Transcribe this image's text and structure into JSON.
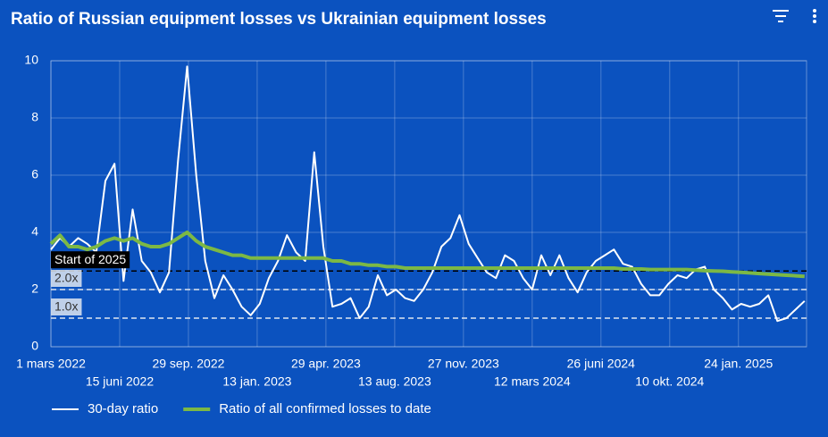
{
  "chart_data": {
    "type": "line",
    "title": "Ratio of Russian equipment losses vs Ukrainian equipment losses",
    "x": [
      "2022-03-01",
      "2022-03-15",
      "2022-03-29",
      "2022-04-12",
      "2022-04-26",
      "2022-05-10",
      "2022-05-24",
      "2022-06-07",
      "2022-06-21",
      "2022-07-05",
      "2022-07-19",
      "2022-08-02",
      "2022-08-16",
      "2022-08-30",
      "2022-09-13",
      "2022-09-27",
      "2022-10-11",
      "2022-10-25",
      "2022-11-08",
      "2022-11-22",
      "2022-12-06",
      "2022-12-20",
      "2023-01-03",
      "2023-01-17",
      "2023-01-31",
      "2023-02-14",
      "2023-02-28",
      "2023-03-14",
      "2023-03-28",
      "2023-04-11",
      "2023-04-25",
      "2023-05-09",
      "2023-05-23",
      "2023-06-06",
      "2023-06-20",
      "2023-07-04",
      "2023-07-18",
      "2023-08-01",
      "2023-08-15",
      "2023-08-29",
      "2023-09-12",
      "2023-09-26",
      "2023-10-10",
      "2023-10-24",
      "2023-11-07",
      "2023-11-21",
      "2023-12-05",
      "2023-12-19",
      "2024-01-02",
      "2024-01-16",
      "2024-01-30",
      "2024-02-13",
      "2024-02-27",
      "2024-03-12",
      "2024-03-26",
      "2024-04-09",
      "2024-04-23",
      "2024-05-07",
      "2024-05-21",
      "2024-06-04",
      "2024-06-18",
      "2024-07-02",
      "2024-07-16",
      "2024-07-30",
      "2024-08-13",
      "2024-08-27",
      "2024-09-10",
      "2024-09-24",
      "2024-10-08",
      "2024-10-22",
      "2024-11-05",
      "2024-11-19",
      "2024-12-03",
      "2024-12-17",
      "2024-12-31",
      "2025-01-14",
      "2025-01-28",
      "2025-02-11",
      "2025-02-25",
      "2025-03-11",
      "2025-03-25",
      "2025-04-08",
      "2025-04-22",
      "2025-05-06"
    ],
    "series": [
      {
        "name": "30-day ratio",
        "color": "#ffffff",
        "values": [
          3.4,
          3.8,
          3.5,
          3.8,
          3.6,
          3.3,
          5.8,
          6.4,
          2.3,
          4.8,
          3.0,
          2.6,
          1.9,
          2.6,
          6.5,
          9.8,
          6.0,
          3.0,
          1.7,
          2.5,
          2.0,
          1.4,
          1.1,
          1.5,
          2.4,
          3.0,
          3.9,
          3.3,
          3.0,
          6.8,
          3.5,
          1.4,
          1.5,
          1.7,
          1.0,
          1.4,
          2.5,
          1.8,
          2.0,
          1.7,
          1.6,
          2.0,
          2.6,
          3.5,
          3.8,
          4.6,
          3.6,
          3.1,
          2.6,
          2.4,
          3.2,
          3.0,
          2.4,
          2.0,
          3.2,
          2.5,
          3.2,
          2.4,
          1.9,
          2.6,
          3.0,
          3.2,
          3.4,
          2.9,
          2.8,
          2.2,
          1.8,
          1.8,
          2.2,
          2.5,
          2.4,
          2.7,
          2.8,
          2.0,
          1.7,
          1.3,
          1.5,
          1.4,
          1.5,
          1.8,
          0.9,
          1.0,
          1.3,
          1.6
        ]
      },
      {
        "name": "Ratio of all confirmed losses to date",
        "color": "#7cb845",
        "values": [
          3.6,
          3.9,
          3.5,
          3.5,
          3.4,
          3.5,
          3.7,
          3.8,
          3.7,
          3.8,
          3.6,
          3.5,
          3.5,
          3.6,
          3.8,
          4.0,
          3.7,
          3.5,
          3.4,
          3.3,
          3.2,
          3.2,
          3.1,
          3.1,
          3.1,
          3.1,
          3.1,
          3.1,
          3.1,
          3.1,
          3.1,
          3.0,
          3.0,
          2.9,
          2.9,
          2.85,
          2.85,
          2.8,
          2.8,
          2.75,
          2.75,
          2.75,
          2.75,
          2.75,
          2.75,
          2.75,
          2.75,
          2.75,
          2.75,
          2.75,
          2.75,
          2.75,
          2.75,
          2.75,
          2.75,
          2.75,
          2.75,
          2.75,
          2.75,
          2.75,
          2.75,
          2.75,
          2.75,
          2.72,
          2.72,
          2.72,
          2.7,
          2.7,
          2.7,
          2.7,
          2.7,
          2.68,
          2.66,
          2.65,
          2.64,
          2.62,
          2.6,
          2.58,
          2.56,
          2.54,
          2.52,
          2.5,
          2.48,
          2.46
        ]
      }
    ],
    "xlim": [
      "2022-03-01",
      "2025-05-09"
    ],
    "xticks": [
      {
        "value": "2022-03-01",
        "label": "1 mars 2022"
      },
      {
        "value": "2022-06-15",
        "label": "15 juni 2022"
      },
      {
        "value": "2022-09-29",
        "label": "29 sep. 2022"
      },
      {
        "value": "2023-01-13",
        "label": "13 jan. 2023"
      },
      {
        "value": "2023-04-29",
        "label": "29 apr. 2023"
      },
      {
        "value": "2023-08-13",
        "label": "13 aug. 2023"
      },
      {
        "value": "2023-11-27",
        "label": "27 nov. 2023"
      },
      {
        "value": "2024-03-12",
        "label": "12 mars 2024"
      },
      {
        "value": "2024-06-26",
        "label": "26 juni 2024"
      },
      {
        "value": "2024-10-10",
        "label": "10 okt. 2024"
      },
      {
        "value": "2025-01-24",
        "label": "24 jan. 2025"
      }
    ],
    "ylim": [
      0,
      10
    ],
    "yticks": [
      0,
      2,
      4,
      6,
      8,
      10
    ],
    "grid": true,
    "annotations": [
      {
        "label": "Start of 2025",
        "value": 2.65,
        "color": "#000000"
      },
      {
        "label": "2.0x",
        "value": 2,
        "color": "#dfe6f0"
      },
      {
        "label": "1.0x",
        "value": 1,
        "color": "#dfe6f0"
      }
    ],
    "legend": "bottom-left"
  }
}
